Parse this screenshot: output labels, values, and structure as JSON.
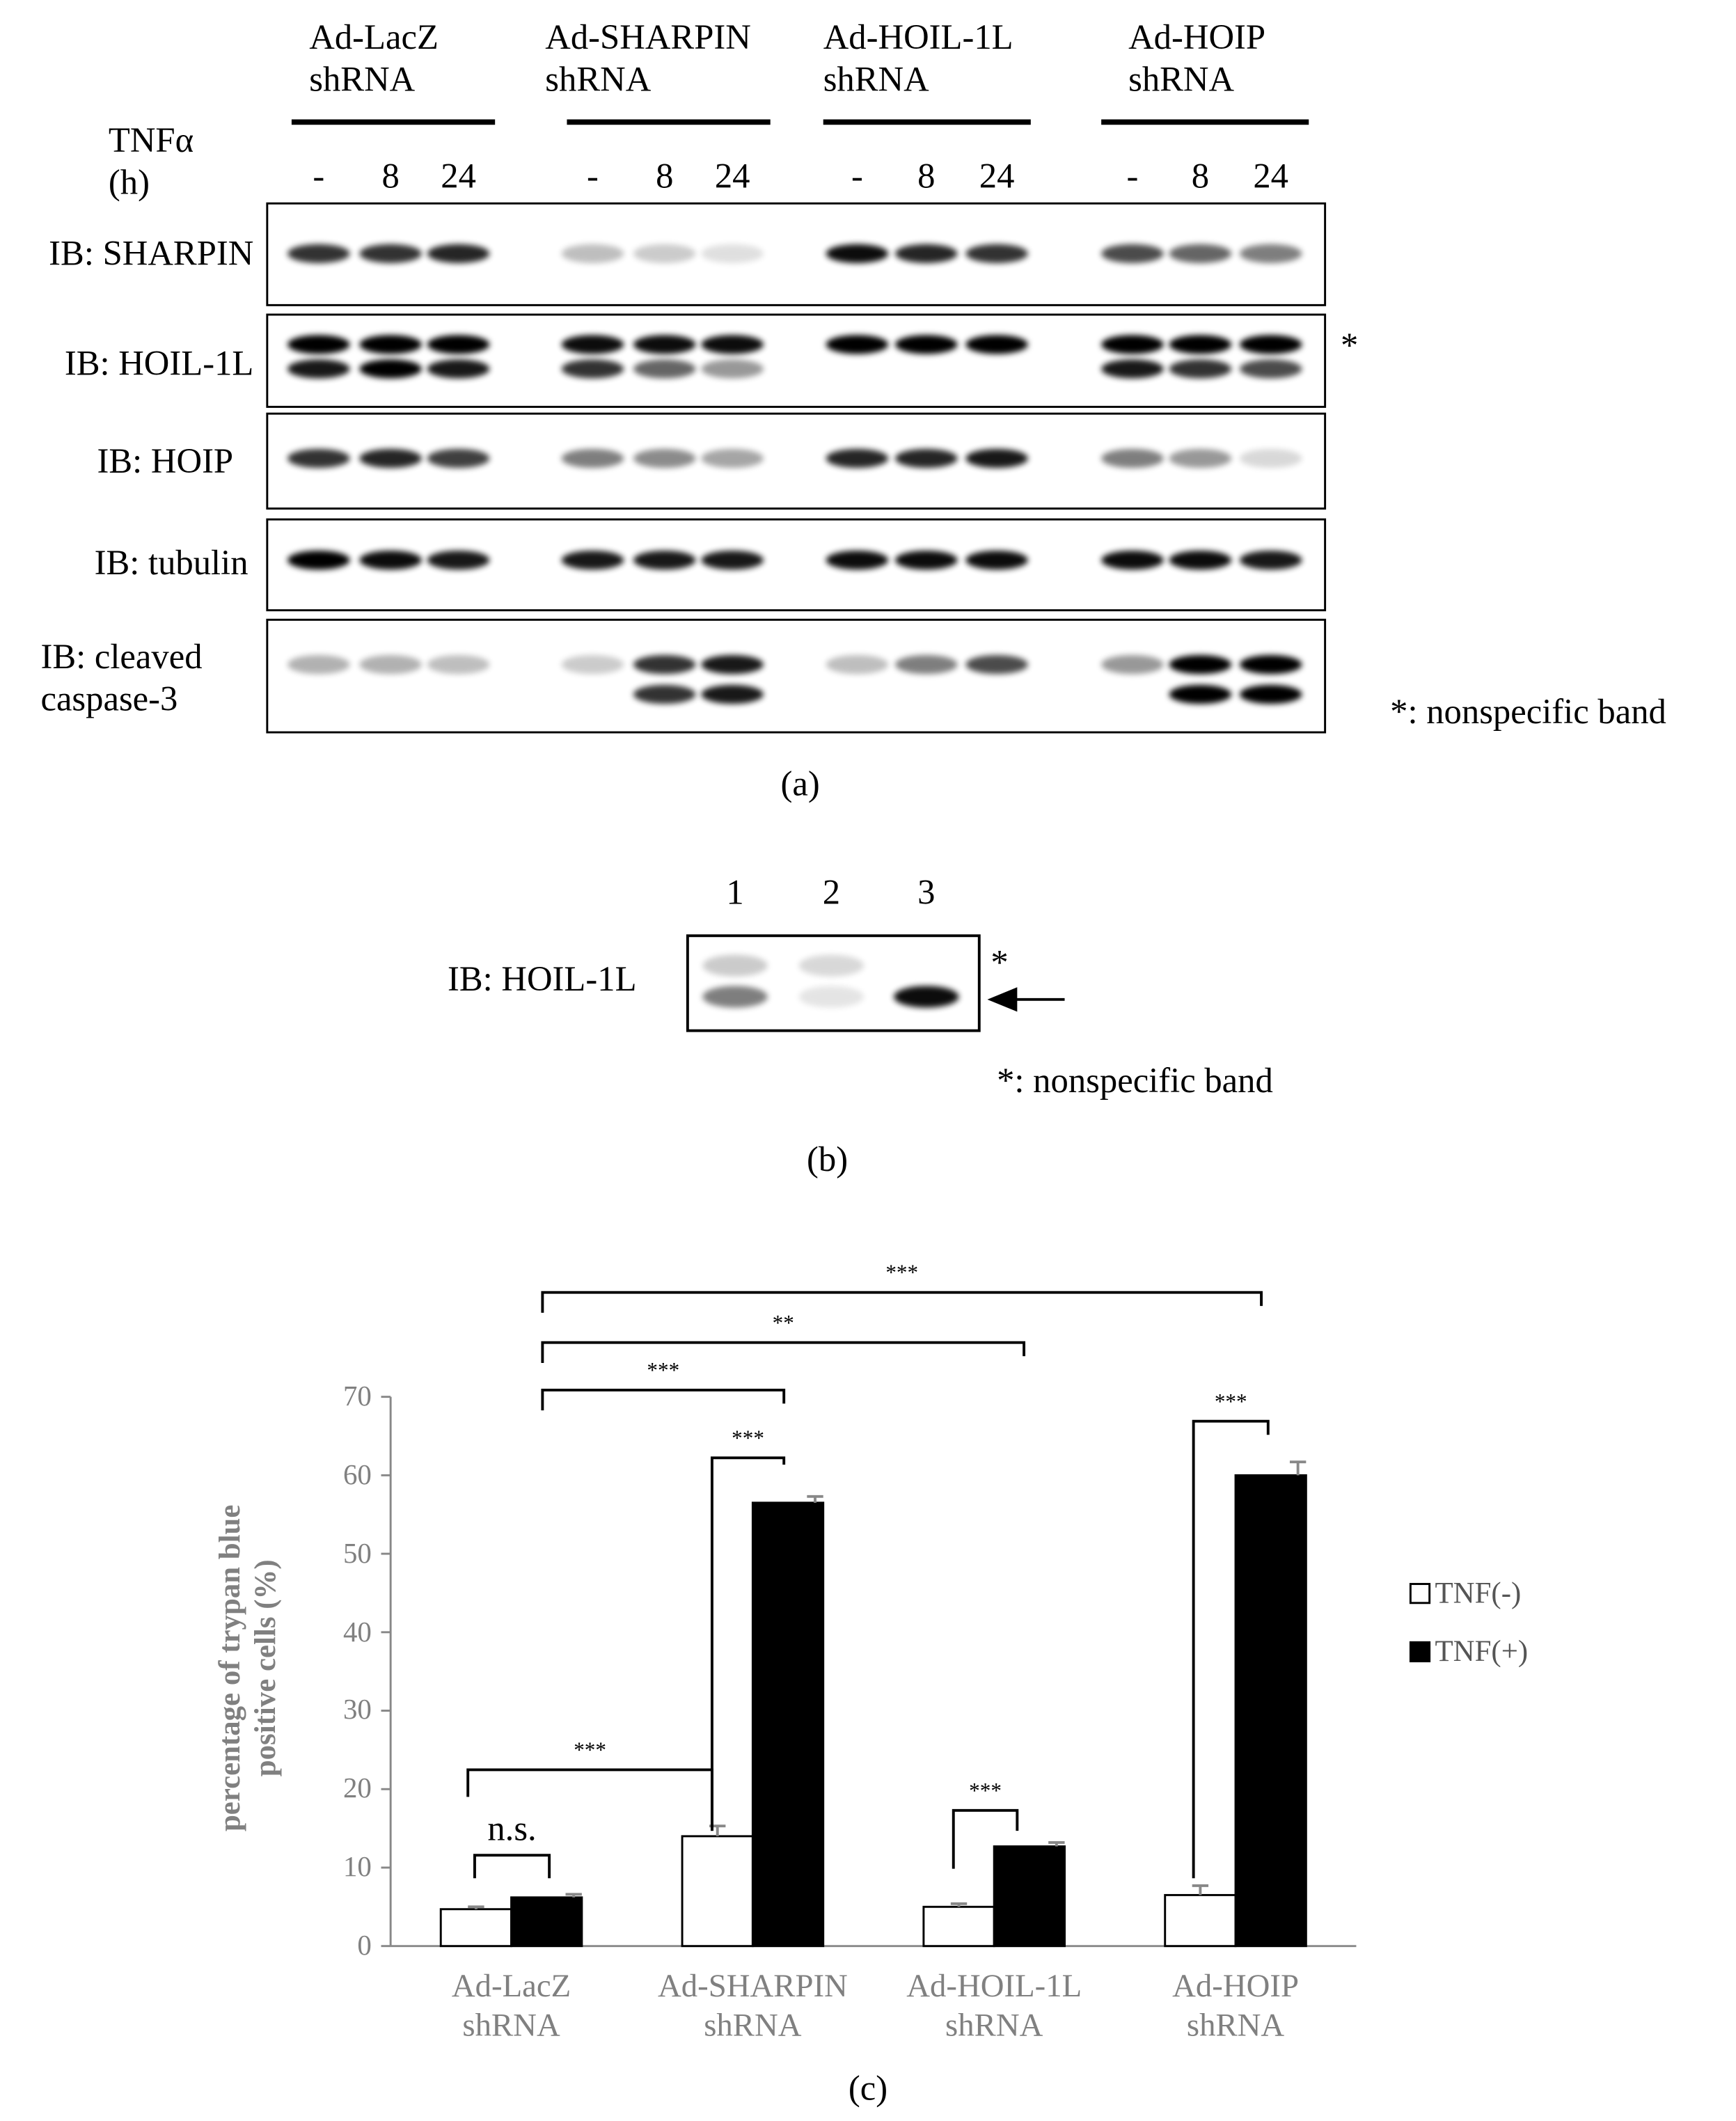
{
  "panel_a": {
    "label": "(a)",
    "treatment_label": "TNFα\n(h)",
    "groups": [
      {
        "name": "Ad-LacZ\nshRNA",
        "lanes": [
          "-",
          "8",
          "24"
        ]
      },
      {
        "name": "Ad-SHARPIN\nshRNA",
        "lanes": [
          "-",
          "8",
          "24"
        ]
      },
      {
        "name": "Ad-HOIL-1L\nshRNA",
        "lanes": [
          "-",
          "8",
          "24"
        ]
      },
      {
        "name": "Ad-HOIP\nshRNA",
        "lanes": [
          "-",
          "8",
          "24"
        ]
      }
    ],
    "blots": [
      "IB: SHARPIN",
      "IB: HOIL-1L",
      "IB: HOIP",
      "IB: tubulin",
      "IB: cleaved\ncaspase-3"
    ],
    "marker": "*",
    "footnote": "*: nonspecific band"
  },
  "panel_b": {
    "label": "(b)",
    "lanes": [
      "1",
      "2",
      "3"
    ],
    "blot": "IB: HOIL-1L",
    "marker": "*",
    "footnote": "*: nonspecific band"
  },
  "chart_data": {
    "type": "bar",
    "label": "(c)",
    "y_label": "percentage of trypan blue\npositive cells (%)",
    "categories": [
      "Ad-LacZ\nshRNA",
      "Ad-SHARPIN\nshRNA",
      "Ad-HOIL-1L\nshRNA",
      "Ad-HOIP\nshRNA"
    ],
    "series": [
      {
        "name": "TNF(-)",
        "color": "#ffffff",
        "values": [
          4.7,
          14.0,
          5.0,
          6.5
        ],
        "errors": [
          0.3,
          1.3,
          0.4,
          1.2
        ]
      },
      {
        "name": "TNF(+)",
        "color": "#000000",
        "values": [
          6.2,
          56.5,
          12.7,
          60.0
        ],
        "errors": [
          0.4,
          0.8,
          0.5,
          1.7
        ]
      }
    ],
    "ylim": [
      0,
      70
    ],
    "yticks": [
      0,
      10,
      20,
      30,
      40,
      50,
      60,
      70
    ],
    "annotations": [
      "n.s.",
      "***",
      "***",
      "***",
      "***",
      "***",
      "**",
      "***"
    ],
    "legend": "right"
  }
}
